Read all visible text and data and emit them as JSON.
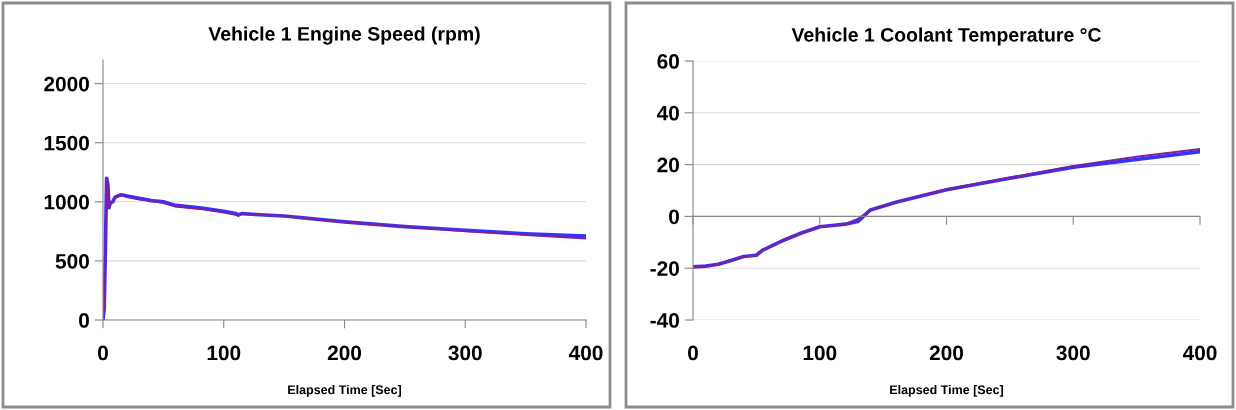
{
  "chart_data": [
    {
      "type": "line",
      "title": "Vehicle 1 Engine Speed (rpm)",
      "xlabel": "Elapsed Time [Sec]",
      "xlim": [
        0,
        400
      ],
      "xticks": [
        0,
        100,
        200,
        300,
        400
      ],
      "ylim": [
        0,
        2200
      ],
      "yticks": [
        0,
        500,
        1000,
        1500,
        2000
      ],
      "grid": "y",
      "legend": false,
      "marker": "none",
      "line_style": "solid",
      "x": [
        0,
        1,
        2,
        3,
        4,
        5,
        6,
        8,
        10,
        15,
        20,
        30,
        40,
        50,
        60,
        80,
        100,
        110,
        112,
        115,
        130,
        150,
        200,
        250,
        300,
        350,
        400
      ],
      "series": [
        {
          "color": "#3333ff",
          "values": [
            0,
            100,
            600,
            1200,
            1150,
            950,
            990,
            1000,
            1040,
            1060,
            1050,
            1030,
            1010,
            1000,
            970,
            950,
            920,
            900,
            890,
            900,
            890,
            880,
            830,
            790,
            760,
            730,
            710
          ]
        },
        {
          "color": "#7f1f9f",
          "values": [
            0,
            100,
            600,
            1190,
            1140,
            950,
            980,
            1000,
            1040,
            1060,
            1040,
            1020,
            1010,
            990,
            960,
            940,
            910,
            890,
            880,
            900,
            890,
            880,
            830,
            790,
            750,
            720,
            690
          ]
        }
      ]
    },
    {
      "type": "line",
      "title": "Vehicle 1 Coolant Temperature °C",
      "xlabel": "Elapsed Time [Sec]",
      "xlim": [
        0,
        400
      ],
      "xticks": [
        0,
        100,
        200,
        300,
        400
      ],
      "ylim": [
        -40,
        60
      ],
      "yticks": [
        -40,
        -20,
        0,
        20,
        40,
        60
      ],
      "grid": "y",
      "legend": false,
      "marker": "none",
      "line_style": "solid",
      "x": [
        0,
        10,
        20,
        30,
        40,
        50,
        55,
        70,
        85,
        100,
        110,
        120,
        130,
        140,
        160,
        200,
        250,
        300,
        350,
        400
      ],
      "series": [
        {
          "color": "#3333ff",
          "values": [
            -19.5,
            -19.2,
            -18.5,
            -17,
            -15.5,
            -15,
            -13,
            -9.5,
            -6.5,
            -4,
            -3.5,
            -3,
            -2,
            2.5,
            5.5,
            10.3,
            14.7,
            19,
            22,
            25
          ]
        },
        {
          "color": "#7f1f9f",
          "values": [
            -19.5,
            -19.2,
            -18.5,
            -17,
            -15.5,
            -15,
            -13,
            -9.5,
            -6.5,
            -4,
            -3.5,
            -3,
            -1,
            2.5,
            5.5,
            10.5,
            15,
            19.5,
            23,
            26
          ]
        }
      ]
    }
  ]
}
